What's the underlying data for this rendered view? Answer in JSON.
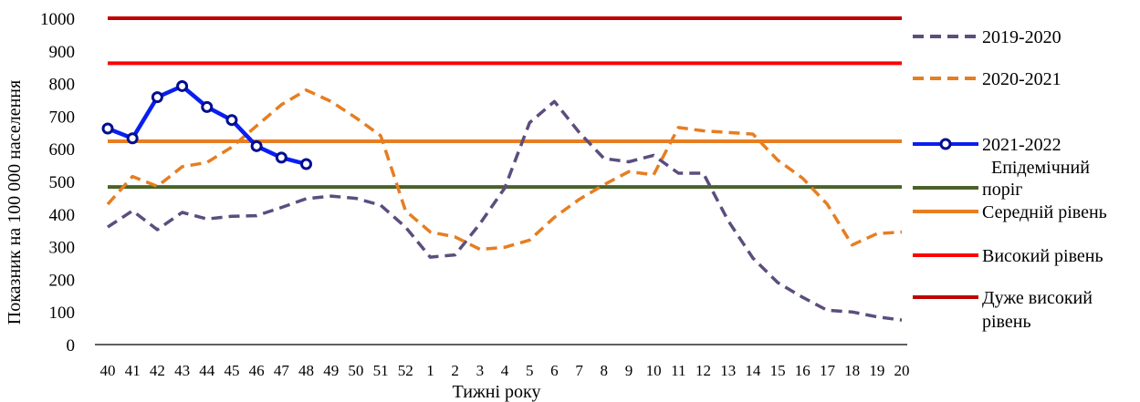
{
  "chart_data": {
    "type": "line",
    "xlabel": "Тижні року",
    "ylabel": "Показник на 100 000 населення",
    "ylim": [
      0,
      1000
    ],
    "yticks": [
      0,
      100,
      200,
      300,
      400,
      500,
      600,
      700,
      800,
      900,
      1000
    ],
    "categories": [
      "40",
      "41",
      "42",
      "43",
      "44",
      "45",
      "46",
      "47",
      "48",
      "49",
      "50",
      "51",
      "52",
      "1",
      "2",
      "3",
      "4",
      "5",
      "6",
      "7",
      "8",
      "9",
      "10",
      "11",
      "12",
      "13",
      "14",
      "15",
      "16",
      "17",
      "18",
      "19",
      "20"
    ],
    "legend_position": "right",
    "grid": false,
    "series": [
      {
        "name": "2019-2020",
        "style": "dashed",
        "color": "#5b4e7e",
        "values": [
          360,
          410,
          352,
          405,
          385,
          393,
          395,
          420,
          447,
          455,
          448,
          427,
          360,
          268,
          275,
          370,
          480,
          680,
          745,
          650,
          570,
          560,
          580,
          525,
          525,
          380,
          265,
          190,
          145,
          105,
          100,
          85,
          75
        ]
      },
      {
        "name": "2020-2021",
        "style": "dashed",
        "color": "#e67e22",
        "values": [
          430,
          515,
          485,
          545,
          558,
          605,
          670,
          735,
          780,
          745,
          695,
          640,
          410,
          345,
          330,
          292,
          298,
          320,
          390,
          445,
          490,
          530,
          520,
          665,
          655,
          650,
          645,
          565,
          510,
          430,
          305,
          340,
          345
        ]
      },
      {
        "name": "2021-2022",
        "style": "solid-markers",
        "color": "#0a1ef0",
        "values": [
          662,
          632,
          758,
          792,
          728,
          688,
          608,
          573,
          553,
          null,
          null,
          null,
          null,
          null,
          null,
          null,
          null,
          null,
          null,
          null,
          null,
          null,
          null,
          null,
          null,
          null,
          null,
          null,
          null,
          null,
          null,
          null,
          null
        ]
      },
      {
        "name": "Епідемічний поріг",
        "style": "threshold",
        "color": "#4a6228",
        "value": 483
      },
      {
        "name": "Середній рівень",
        "style": "threshold",
        "color": "#e67e22",
        "value": 623
      },
      {
        "name": "Високий рівень",
        "style": "threshold",
        "color": "#ff0000",
        "value": 862
      },
      {
        "name": "Дуже високий рівень",
        "style": "threshold",
        "color": "#c00000",
        "value": 1000
      }
    ]
  }
}
